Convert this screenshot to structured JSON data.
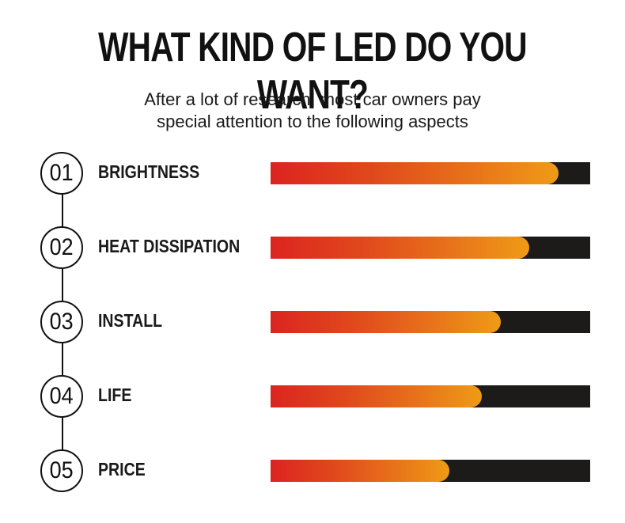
{
  "header": {
    "title": "WHAT KIND OF LED DO YOU WANT?",
    "subtitle_line1": "After a lot of research, most car owners pay",
    "subtitle_line2": "special attention to the following aspects"
  },
  "colors": {
    "gradient_start": "#dc2420",
    "gradient_end": "#ef9b16",
    "track": "#1c1b19"
  },
  "chart_data": {
    "type": "bar",
    "orientation": "horizontal",
    "title": "WHAT KIND OF LED DO YOU WANT?",
    "subtitle": "After a lot of research, most car owners pay special attention to the following aspects",
    "xlabel": "",
    "ylabel": "",
    "xlim": [
      0,
      100
    ],
    "unit": "percent",
    "grid": false,
    "categories": [
      "BRIGHTNESS",
      "HEAT DISSIPATION",
      "INSTALL",
      "LIFE",
      "PRICE"
    ],
    "numbers": [
      "01",
      "02",
      "03",
      "04",
      "05"
    ],
    "values": [
      90,
      81,
      72,
      66,
      56
    ]
  }
}
